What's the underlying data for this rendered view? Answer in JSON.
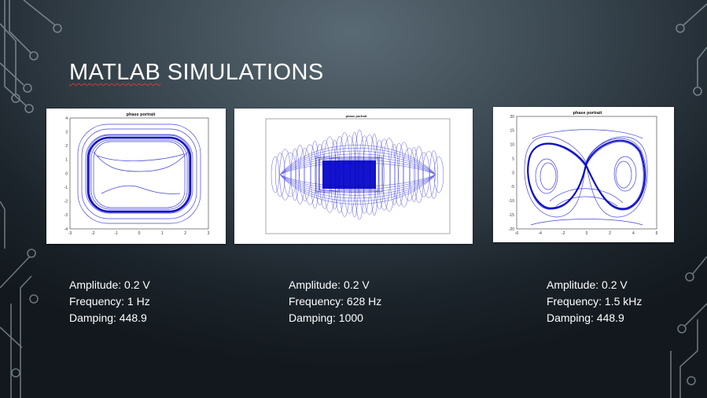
{
  "slide": {
    "title_word1": "MATLAB",
    "title_word2": "SIMULATIONS"
  },
  "plots": [
    {
      "title": "phase portrait",
      "x_ticks": [
        "-3",
        "-2",
        "-1",
        "0",
        "1",
        "2",
        "3"
      ],
      "y_ticks": [
        "4",
        "3",
        "2",
        "1",
        "0",
        "-1",
        "-2",
        "-3",
        "-4"
      ]
    },
    {
      "title": "phase portrait"
    },
    {
      "title": "phase portrait",
      "x_ticks": [
        "-6",
        "-4",
        "-2",
        "0",
        "2",
        "4",
        "6"
      ],
      "y_ticks": [
        "20",
        "15",
        "10",
        "5",
        "0",
        "-5",
        "-10",
        "-15",
        "-20"
      ]
    }
  ],
  "params": [
    {
      "amplitude": "Amplitude: 0.2 V",
      "frequency": "Frequency: 1 Hz",
      "damping": "Damping: 448.9"
    },
    {
      "amplitude": "Amplitude: 0.2 V",
      "frequency": "Frequency: 628 Hz",
      "damping": "Damping: 1000"
    },
    {
      "amplitude": "Amplitude: 0.2 V",
      "frequency": "Frequency: 1.5 kHz",
      "damping": "Damping: 448.9"
    }
  ],
  "colors": {
    "trajectory": "#1a1adc",
    "trajectory_dense": "#0000c8",
    "circuit": "#9aa6ad"
  }
}
